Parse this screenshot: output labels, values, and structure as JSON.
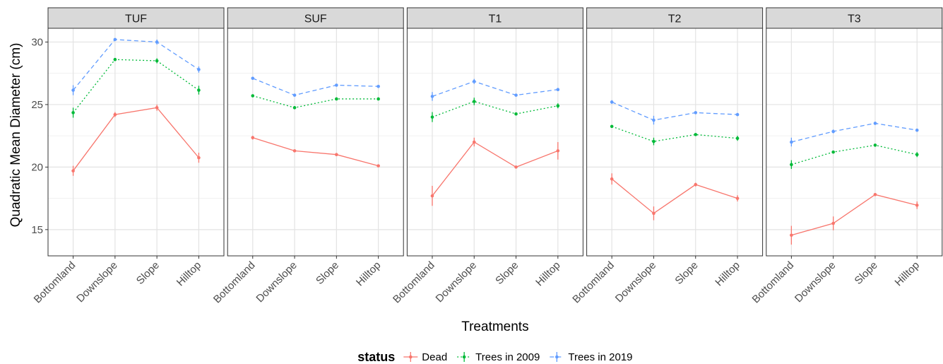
{
  "chart_data": {
    "type": "line",
    "x_label": "Treatments",
    "y_label": "Quadratic Mean Diameter (cm)",
    "legend_title": "status",
    "legend": "bottom",
    "grid": true,
    "facets": [
      "TUF",
      "SUF",
      "T1",
      "T2",
      "T3"
    ],
    "categories": [
      "Bottomland",
      "Downslope",
      "Slope",
      "Hilltop"
    ],
    "ylim": [
      12.9,
      31.1
    ],
    "yticks": [
      15,
      20,
      25,
      30
    ],
    "minor_yticks": [
      17.5,
      22.5,
      27.5
    ],
    "series": [
      {
        "name": "Dead",
        "color": "#f8766d",
        "dash": "solid",
        "values": [
          [
            19.7,
            24.2,
            24.75,
            20.75
          ],
          [
            22.35,
            21.3,
            21.0,
            20.1
          ],
          [
            17.7,
            22.0,
            20.0,
            21.3
          ],
          [
            19.05,
            16.3,
            18.6,
            17.5
          ],
          [
            14.55,
            15.5,
            17.8,
            16.95
          ]
        ],
        "errors": [
          [
            0.4,
            0.2,
            0.25,
            0.4
          ],
          [
            0.15,
            0.1,
            0.05,
            0.05
          ],
          [
            0.8,
            0.35,
            0.1,
            0.7
          ],
          [
            0.45,
            0.55,
            0.15,
            0.25
          ],
          [
            0.75,
            0.55,
            0.1,
            0.3
          ]
        ]
      },
      {
        "name": "Trees in 2009",
        "color": "#00ba38",
        "dash": "dotted",
        "values": [
          [
            24.35,
            28.6,
            28.5,
            26.15
          ],
          [
            25.7,
            24.75,
            25.45,
            25.45
          ],
          [
            24.0,
            25.25,
            24.25,
            24.9
          ],
          [
            23.25,
            22.05,
            22.6,
            22.3
          ],
          [
            20.2,
            21.2,
            21.75,
            21.0
          ]
        ],
        "errors": [
          [
            0.4,
            0.1,
            0.2,
            0.35
          ],
          [
            0.1,
            0.1,
            0.1,
            0.1
          ],
          [
            0.4,
            0.3,
            0.1,
            0.2
          ],
          [
            0.1,
            0.3,
            0.1,
            0.2
          ],
          [
            0.35,
            0.1,
            0.1,
            0.2
          ]
        ]
      },
      {
        "name": "Trees in 2019",
        "color": "#619cff",
        "dash": "dashed",
        "values": [
          [
            26.15,
            30.2,
            30.0,
            27.8
          ],
          [
            27.1,
            25.75,
            26.55,
            26.45
          ],
          [
            25.65,
            26.85,
            25.75,
            26.2
          ],
          [
            25.2,
            23.75,
            24.35,
            24.2
          ],
          [
            22.0,
            22.85,
            23.5,
            22.95
          ]
        ],
        "errors": [
          [
            0.4,
            0.1,
            0.2,
            0.25
          ],
          [
            0.1,
            0.1,
            0.1,
            0.1
          ],
          [
            0.35,
            0.2,
            0.1,
            0.1
          ],
          [
            0.15,
            0.35,
            0.1,
            0.1
          ],
          [
            0.35,
            0.15,
            0.1,
            0.1
          ]
        ]
      }
    ]
  }
}
